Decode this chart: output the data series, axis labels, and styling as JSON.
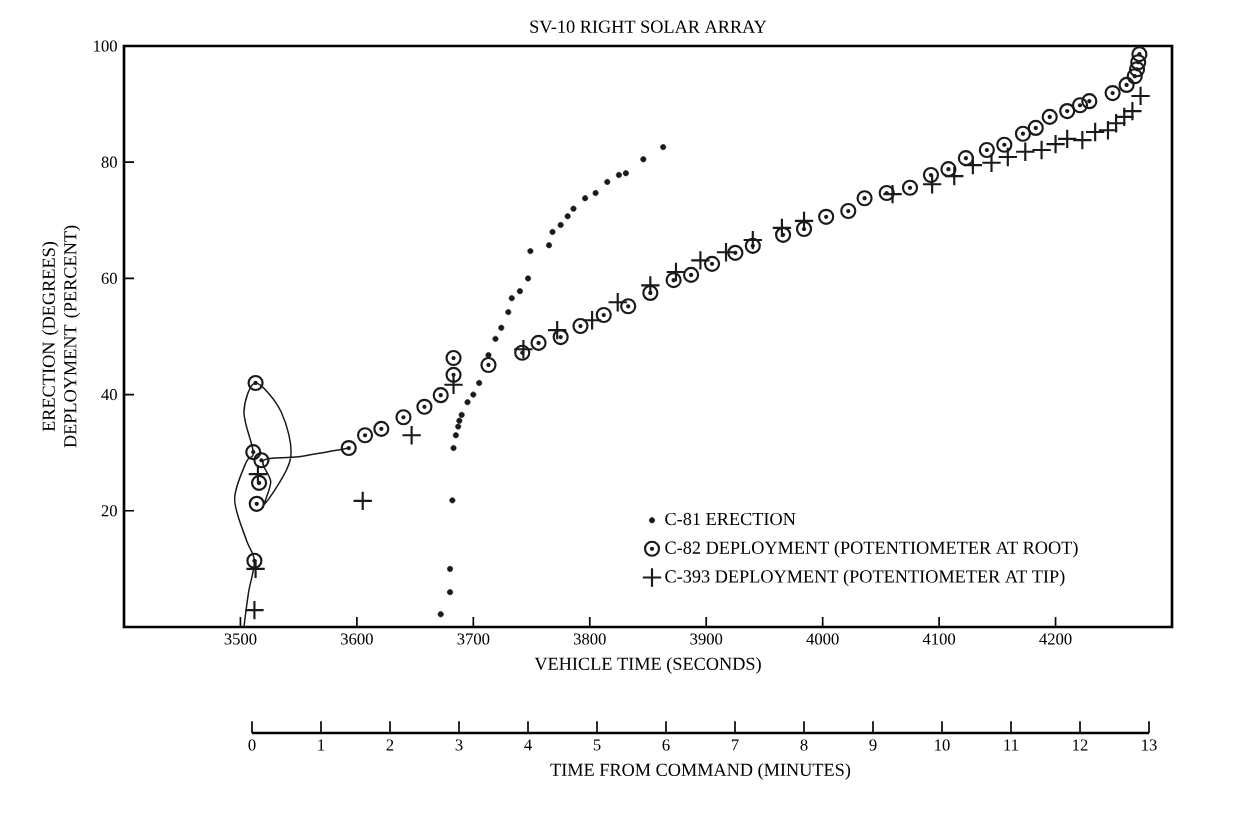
{
  "chart_data": {
    "type": "scatter",
    "title": "SV-10 RIGHT SOLAR ARRAY",
    "xlabel": "VEHICLE TIME (SECONDS)",
    "ylabel": "ERECTION (DEGREES) DEPLOYMENT (PERCENT)",
    "x2label": "TIME FROM COMMAND (MINUTES)",
    "xlim": [
      3400,
      4300
    ],
    "ylim": [
      0,
      100
    ],
    "xticks": [
      3500,
      3600,
      3700,
      3800,
      3900,
      4000,
      4100,
      4200
    ],
    "yticks": [
      20,
      40,
      60,
      80,
      100
    ],
    "x2lim": [
      0,
      13
    ],
    "x2ticks": [
      0,
      1,
      2,
      3,
      4,
      5,
      6,
      7,
      8,
      9,
      10,
      11,
      12,
      13
    ],
    "legend": "bottom right",
    "grid": false,
    "series": [
      {
        "name": "C-81 ERECTION",
        "color": "#1a1a1a",
        "marker": "circle",
        "x": [
          3672,
          3680,
          3680,
          3682,
          3683,
          3685,
          3687,
          3688,
          3690,
          3695,
          3700,
          3705,
          3713,
          3719,
          3724,
          3730,
          3733,
          3740,
          3747,
          3749,
          3765,
          3768,
          3775,
          3781,
          3786,
          3796,
          3805,
          3815,
          3825,
          3831,
          3846,
          3863
        ],
        "values": [
          2.2,
          6,
          10,
          21.8,
          30.8,
          33,
          34.5,
          35.5,
          36.5,
          38.7,
          40,
          42,
          46.8,
          49.6,
          51.5,
          54.2,
          56.6,
          57.8,
          60,
          64.7,
          65.7,
          68,
          69.2,
          70.7,
          72,
          73.8,
          74.7,
          76.6,
          77.8,
          78.1,
          80.5,
          82.6
        ]
      },
      {
        "name": "C-82 DEPLOYMENT (POTENTIOMETER AT ROOT)",
        "color": "#1a1a1a",
        "marker": "circle",
        "x": [
          3513,
          3511,
          3518,
          3516,
          3514,
          3512,
          3593,
          3607,
          3621,
          3640,
          3658,
          3672,
          3683,
          3683,
          3713,
          3742,
          3756,
          3775,
          3792,
          3812,
          3833,
          3852,
          3872,
          3887,
          3905,
          3925,
          3940,
          3966,
          3984,
          4003,
          4022,
          4036,
          4055,
          4075,
          4093,
          4108,
          4123,
          4141,
          4156,
          4172,
          4183,
          4195,
          4210,
          4221,
          4229,
          4249,
          4261,
          4268,
          4270,
          4271,
          4272
        ],
        "values": [
          42.0,
          30.1,
          28.7,
          24.8,
          21.2,
          11.4,
          30.8,
          33.0,
          34.1,
          36.1,
          37.9,
          39.9,
          43.4,
          46.3,
          45.1,
          47.2,
          48.9,
          49.9,
          51.8,
          53.7,
          55.2,
          57.5,
          59.7,
          60.6,
          62.5,
          64.4,
          65.6,
          67.5,
          68.5,
          70.6,
          71.6,
          73.8,
          74.7,
          75.6,
          77.8,
          78.8,
          80.7,
          82.1,
          83.0,
          84.9,
          85.9,
          87.8,
          88.8,
          89.8,
          90.5,
          91.9,
          93.3,
          94.8,
          96.0,
          97.2,
          98.6
        ]
      },
      {
        "name": "C-393 DEPLOYMENT (POTENTIOMETER AT TIP)",
        "color": "#1a1a1a",
        "marker": "cross",
        "x": [
          3512,
          3513,
          3515,
          3605,
          3647,
          3683,
          3743,
          3772,
          3802,
          3824,
          3852,
          3874,
          3895,
          3917,
          3940,
          3965,
          3984,
          4060,
          4094,
          4113,
          4129,
          4145,
          4159,
          4174,
          4188,
          4200,
          4210,
          4223,
          4234,
          4245,
          4252,
          4259,
          4266,
          4273
        ],
        "values": [
          2.9,
          10.0,
          26.3,
          21.7,
          33.0,
          41.7,
          47.8,
          51.1,
          52.8,
          55.9,
          58.8,
          61.1,
          63.1,
          64.5,
          66.6,
          68.7,
          69.9,
          74.5,
          76.2,
          77.6,
          79.5,
          79.9,
          80.9,
          81.8,
          82.1,
          83.1,
          84.0,
          83.8,
          85.2,
          85.5,
          86.7,
          87.8,
          88.8,
          91.4
        ]
      },
      {
        "type": "line",
        "color": "#1a1a1a",
        "marker": "none",
        "line_style": "solid",
        "x": [
          3503,
          3507,
          3512,
          3505,
          3495,
          3505,
          3511,
          3503,
          3513,
          3535,
          3543,
          3521,
          3526,
          3520,
          3550,
          3593
        ],
        "values": [
          0,
          6,
          11.4,
          15,
          22,
          28.4,
          30.1,
          37,
          42,
          37,
          29,
          21.2,
          25,
          28.7,
          29.3,
          30.8
        ]
      }
    ]
  }
}
